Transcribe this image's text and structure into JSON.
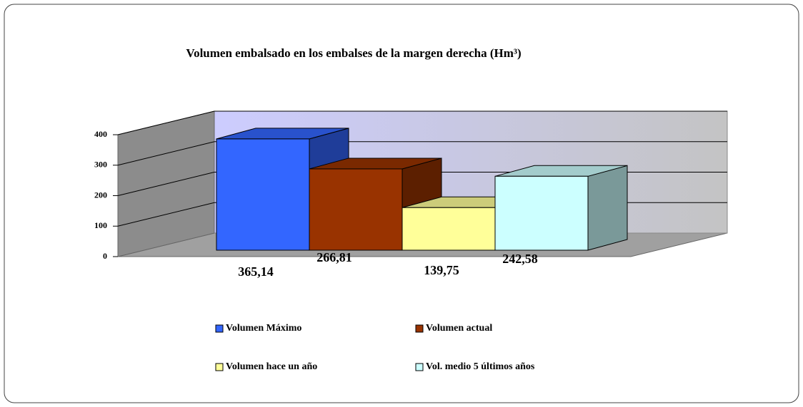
{
  "chart_data": {
    "type": "bar",
    "title": "Volumen embalsado en los embalses de la margen derecha (Hm³)",
    "series": [
      {
        "name": "Volumen Máximo",
        "color": "#3366ff",
        "values": [
          365.14
        ],
        "value_labels": [
          "365,14"
        ]
      },
      {
        "name": "Volumen actual",
        "color": "#993300",
        "values": [
          266.81
        ],
        "value_labels": [
          "266,81"
        ]
      },
      {
        "name": "Volumen hace un año",
        "color": "#ffff99",
        "values": [
          139.75
        ],
        "value_labels": [
          "139,75"
        ]
      },
      {
        "name": "Vol. medio 5 últimos años",
        "color": "#ccffff",
        "values": [
          242.58
        ],
        "value_labels": [
          "242,58"
        ]
      }
    ],
    "ylim": [
      0,
      400
    ],
    "yticks": [
      0,
      100,
      200,
      300,
      400
    ],
    "grid": true
  }
}
